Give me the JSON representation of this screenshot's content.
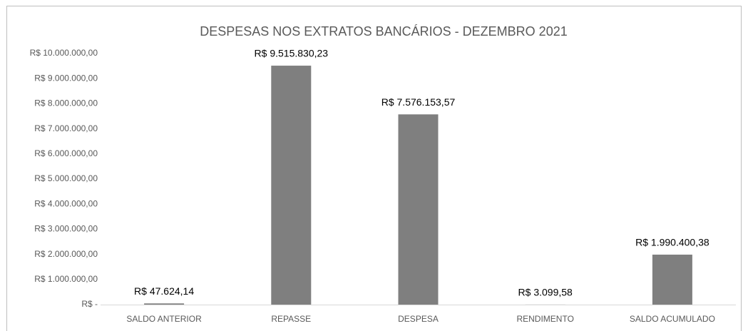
{
  "chart_data": {
    "type": "bar",
    "title": "DESPESAS NOS EXTRATOS BANCÁRIOS - DEZEMBRO 2021",
    "categories": [
      "SALDO ANTERIOR",
      "REPASSE",
      "DESPESA",
      "RENDIMENTO",
      "SALDO ACUMULADO"
    ],
    "values": [
      47624.14,
      9515830.23,
      7576153.57,
      3099.58,
      1990400.38
    ],
    "value_labels": [
      "R$ 47.624,14",
      "R$ 9.515.830,23",
      "R$ 7.576.153,57",
      "R$ 3.099,58",
      "R$ 1.990.400,38"
    ],
    "color": "#7f7f7f",
    "ylim": [
      0,
      10000000
    ],
    "yticks": [
      {
        "value": 0,
        "label": "R$ -"
      },
      {
        "value": 1000000,
        "label": "R$ 1.000.000,00"
      },
      {
        "value": 2000000,
        "label": "R$ 2.000.000,00"
      },
      {
        "value": 3000000,
        "label": "R$ 3.000.000,00"
      },
      {
        "value": 4000000,
        "label": "R$ 4.000.000,00"
      },
      {
        "value": 5000000,
        "label": "R$ 5.000.000,00"
      },
      {
        "value": 6000000,
        "label": "R$ 6.000.000,00"
      },
      {
        "value": 7000000,
        "label": "R$ 7.000.000,00"
      },
      {
        "value": 8000000,
        "label": "R$ 8.000.000,00"
      },
      {
        "value": 9000000,
        "label": "R$ 9.000.000,00"
      },
      {
        "value": 10000000,
        "label": "R$ 10.000.000,00"
      }
    ],
    "grid": false
  }
}
